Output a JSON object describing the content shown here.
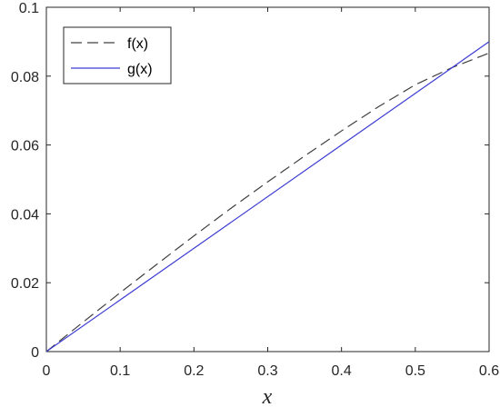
{
  "chart_data": {
    "type": "line",
    "xlabel": "x",
    "ylabel": "",
    "title": "",
    "xlim": [
      0,
      0.6
    ],
    "ylim": [
      0,
      0.1
    ],
    "xticks": [
      0,
      0.1,
      0.2,
      0.3,
      0.4,
      0.5,
      0.6
    ],
    "xtick_labels": [
      "0",
      "0.1",
      "0.2",
      "0.3",
      "0.4",
      "0.5",
      "0.6"
    ],
    "yticks": [
      0,
      0.02,
      0.04,
      0.06,
      0.08,
      0.1
    ],
    "ytick_labels": [
      "0",
      "0.02",
      "0.04",
      "0.06",
      "0.08",
      "0.1"
    ],
    "grid": false,
    "legend_position": "top-left",
    "series": [
      {
        "name": "f(x)",
        "color": "#404040",
        "style": "dashed",
        "x": [
          0,
          0.05,
          0.1,
          0.15,
          0.2,
          0.25,
          0.3,
          0.35,
          0.4,
          0.45,
          0.5,
          0.55,
          0.6
        ],
        "y": [
          0,
          0.0086,
          0.0171,
          0.0254,
          0.0336,
          0.0416,
          0.0493,
          0.0568,
          0.0641,
          0.0711,
          0.0775,
          0.0825,
          0.0867
        ]
      },
      {
        "name": "g(x)",
        "color": "#3c3cd2",
        "style": "solid",
        "x": [
          0,
          0.6
        ],
        "y": [
          0,
          0.09
        ]
      }
    ]
  }
}
